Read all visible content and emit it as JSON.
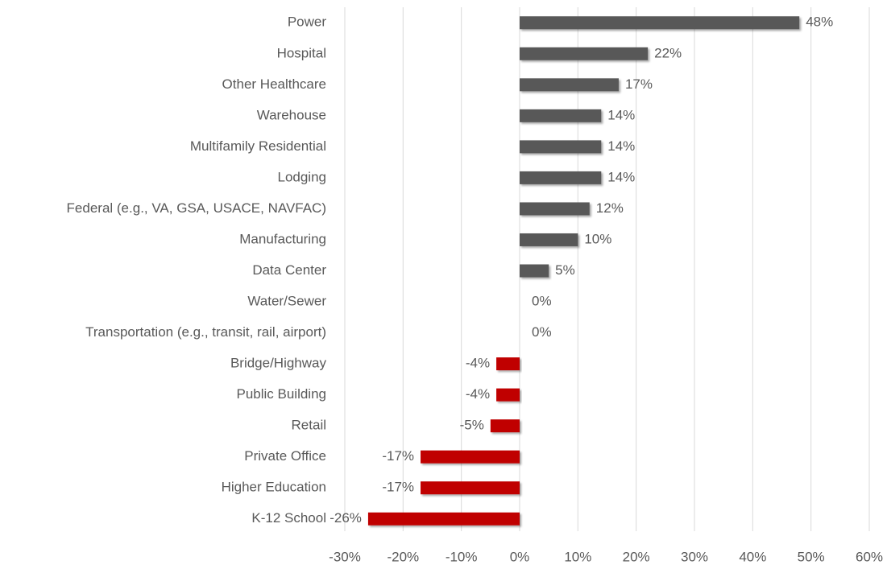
{
  "chart_data": {
    "type": "bar",
    "orientation": "horizontal",
    "categories": [
      "Power",
      "Hospital",
      "Other Healthcare",
      "Warehouse",
      "Multifamily Residential",
      "Lodging",
      "Federal (e.g., VA, GSA, USACE, NAVFAC)",
      "Manufacturing",
      "Data Center",
      "Water/Sewer",
      "Transportation (e.g., transit, rail, airport)",
      "Bridge/Highway",
      "Public Building",
      "Retail",
      "Private Office",
      "Higher Education",
      "K-12 School"
    ],
    "values": [
      48,
      22,
      17,
      14,
      14,
      14,
      12,
      10,
      5,
      0,
      0,
      -4,
      -4,
      -5,
      -17,
      -17,
      -26
    ],
    "value_labels": [
      "48%",
      "22%",
      "17%",
      "14%",
      "14%",
      "14%",
      "12%",
      "10%",
      "5%",
      "0%",
      "0%",
      "-4%",
      "-4%",
      "-5%",
      "-17%",
      "-17%",
      "-26%"
    ],
    "colors": [
      "#595959",
      "#595959",
      "#595959",
      "#595959",
      "#595959",
      "#595959",
      "#595959",
      "#595959",
      "#595959",
      "#595959",
      "#595959",
      "#c00000",
      "#c00000",
      "#c00000",
      "#c00000",
      "#c00000",
      "#c00000"
    ],
    "xlim": [
      -30,
      60
    ],
    "xticks": [
      {
        "value": -30,
        "label": "-30%"
      },
      {
        "value": -20,
        "label": "-20%"
      },
      {
        "value": -10,
        "label": "-10%"
      },
      {
        "value": 0,
        "label": "0%"
      },
      {
        "value": 10,
        "label": "10%"
      },
      {
        "value": 20,
        "label": "20%"
      },
      {
        "value": 30,
        "label": "30%"
      },
      {
        "value": 40,
        "label": "40%"
      },
      {
        "value": 50,
        "label": "50%"
      },
      {
        "value": 60,
        "label": "60%"
      }
    ],
    "grid": true
  }
}
